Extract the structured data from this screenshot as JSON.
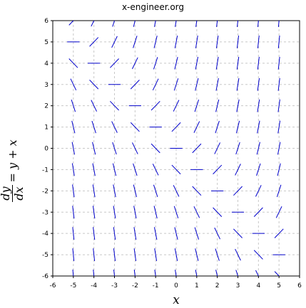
{
  "header": {
    "source": "x-engineer.org"
  },
  "ylabel": {
    "num": "dy",
    "den": "dx",
    "rhs": "= y + x"
  },
  "chart_data": {
    "type": "quiver",
    "title": "",
    "xlabel": "x",
    "ylabel": "dy/dx = y + x",
    "equation": "dy/dx = y + x",
    "xlim": [
      -6,
      6
    ],
    "ylim": [
      -6,
      6
    ],
    "xticks": [
      -6,
      -5,
      -4,
      -3,
      -2,
      -1,
      0,
      1,
      2,
      3,
      4,
      5,
      6
    ],
    "yticks": [
      -6,
      -5,
      -4,
      -3,
      -2,
      -1,
      0,
      1,
      2,
      3,
      4,
      5,
      6
    ],
    "xtick_labels": [
      "-6",
      "-5",
      "-4",
      "-3",
      "-2",
      "-1",
      "0",
      "1",
      "2",
      "3",
      "4",
      "5",
      "6"
    ],
    "ytick_labels": [
      "-6",
      "-5",
      "-4",
      "-3",
      "-2",
      "-1",
      "0",
      "1",
      "2",
      "3",
      "4",
      "5",
      "6"
    ],
    "grid": true,
    "x_grid": [
      -5,
      -4,
      -3,
      -2,
      -1,
      0,
      1,
      2,
      3,
      4,
      5
    ],
    "y_grid": [
      -6,
      -5,
      -4,
      -3,
      -2,
      -1,
      0,
      1,
      2,
      3,
      4,
      5,
      6
    ],
    "segment_length_x_units": 0.6,
    "color": "#0000cc"
  }
}
